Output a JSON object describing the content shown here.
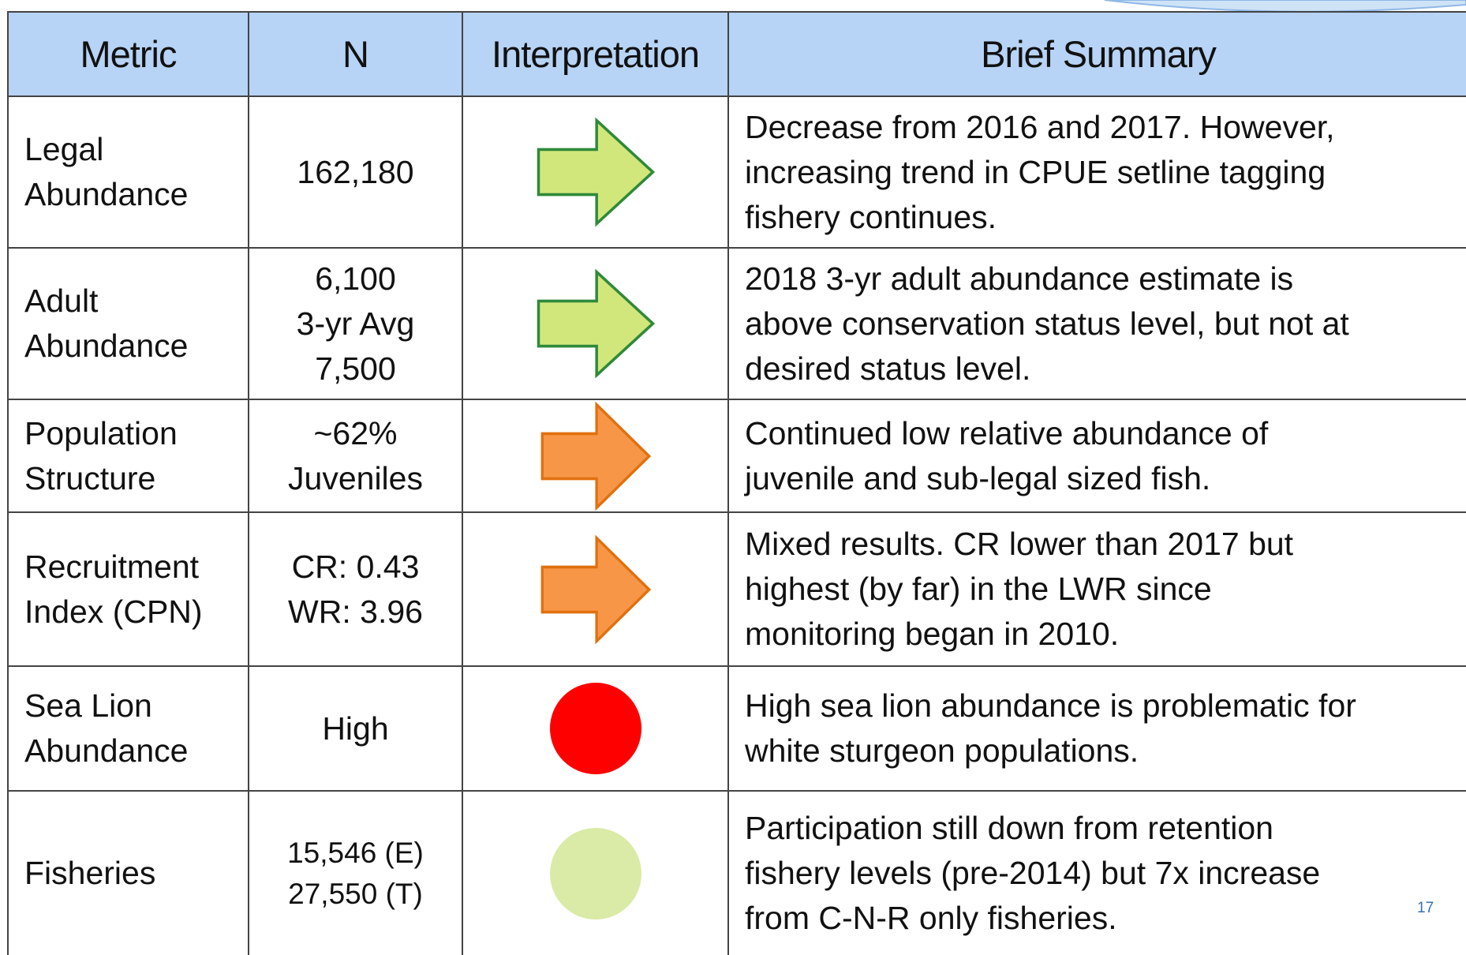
{
  "table": {
    "header": [
      "Metric",
      "N",
      "Interpretation",
      "Brief Summary"
    ],
    "rows": [
      [
        "Legal\nAbundance",
        "162,180",
        "Decrease from 2016 and 2017. However,\nincreasing trend in CPUE setline tagging\nfishery continues."
      ],
      [
        "Adult\nAbundance",
        "6,100\n3-yr Avg\n7,500",
        "2018 3-yr adult abundance estimate is\nabove conservation status level, but not at\ndesired status level."
      ],
      [
        "Population\nStructure",
        "~62%\nJuveniles",
        "Continued low relative abundance of\njuvenile and sub-legal sized fish."
      ],
      [
        "Recruitment\nIndex (CPN)",
        "CR: 0.43\nWR: 3.96",
        "Mixed results. CR lower than 2017 but\nhighest (by far) in the LWR since\nmonitoring began in 2010."
      ],
      [
        "Sea Lion\nAbundance",
        "High",
        "High sea lion abundance is problematic for\nwhite sturgeon populations."
      ],
      [
        "Fisheries",
        "15,546 (E)\n27,550 (T)",
        "Participation still down from retention\nfishery levels (pre-2014) but 7x increase\nfrom C-N-R only fisheries."
      ]
    ]
  },
  "page_number": "17"
}
